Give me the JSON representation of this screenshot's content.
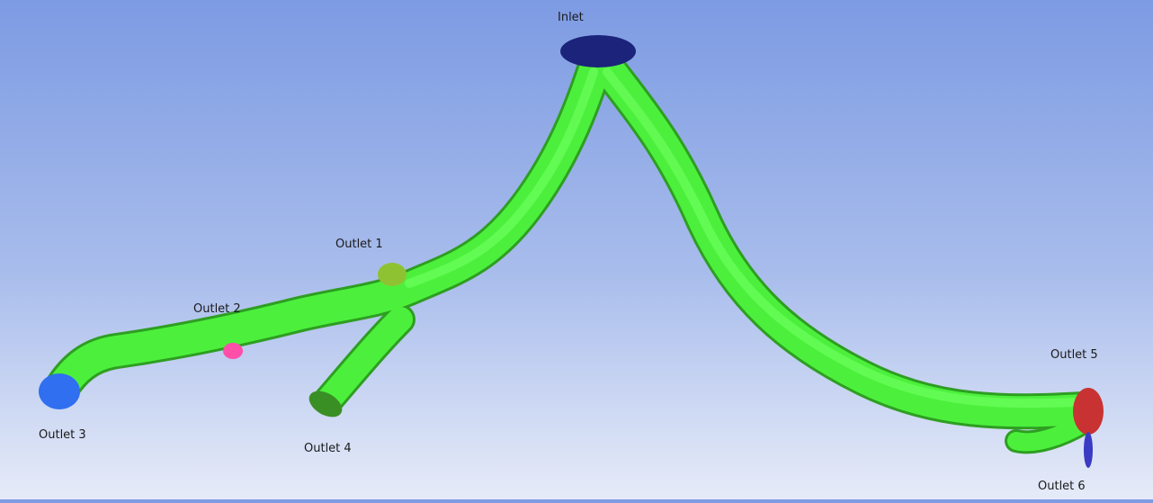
{
  "labels": {
    "inlet": "Inlet",
    "outlet1": "Outlet 1",
    "outlet2": "Outlet 2",
    "outlet3": "Outlet 3",
    "outlet4": "Outlet 4",
    "outlet5": "Outlet 5",
    "outlet6": "Outlet 6"
  },
  "colors": {
    "vessel": "#4cf03c",
    "vessel_dark": "#2e9e22",
    "inlet": "#1b237a",
    "outlet1": "#8fc232",
    "outlet2": "#ff4fa8",
    "outlet3": "#2f6ff0",
    "outlet4": "#3a8f24",
    "outlet5": "#c93232",
    "outlet6": "#3a3ac4"
  }
}
